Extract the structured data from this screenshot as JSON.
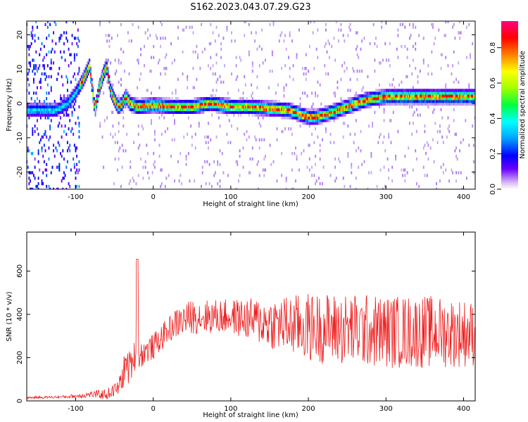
{
  "title": "S162.2023.043.07.29.G23",
  "colors": {
    "snr_line": "#ee1c1c",
    "frame": "#000000"
  },
  "chart_data": [
    {
      "type": "heatmap",
      "xlabel": "Height of straight line (km)",
      "ylabel": "Frequency (Hz)",
      "xlim": [
        -163,
        415
      ],
      "ylim": [
        -25,
        24
      ],
      "x_ticks": [
        "-100",
        "0",
        "100",
        "200",
        "300",
        "400"
      ],
      "y_ticks": [
        "-20",
        "-10",
        "0",
        "10",
        "20"
      ],
      "ridge": {
        "x": [
          -125,
          -110,
          -100,
          -90,
          -82,
          -75,
          -70,
          -65,
          -60,
          -55,
          -50,
          -45,
          -40,
          -35,
          -30,
          -20,
          0,
          25,
          50,
          75,
          100,
          125,
          150,
          175,
          200,
          210,
          225,
          250,
          275,
          300,
          325,
          350,
          375,
          400,
          415
        ],
        "y": [
          -2,
          0,
          3,
          7,
          11,
          -2,
          4,
          8,
          11,
          4,
          1,
          -1,
          0,
          2,
          0,
          -1,
          -0.5,
          -1,
          -1,
          0,
          -1,
          -1,
          -1.5,
          -2,
          -4,
          -4,
          -3,
          -1,
          1,
          2,
          2,
          2,
          2,
          2,
          2
        ]
      },
      "colorbar": {
        "label": "Normalized spectral amplitude",
        "ticks": [
          "0.0",
          "0.2",
          "0.4",
          "0.6",
          "0.8"
        ]
      }
    },
    {
      "type": "line",
      "xlabel": "Height of straight line (km)",
      "ylabel": "SNR (10 * v/v)",
      "xlim": [
        -163,
        415
      ],
      "ylim": [
        0,
        780
      ],
      "x_ticks": [
        "-100",
        "0",
        "100",
        "200",
        "300",
        "400"
      ],
      "y_ticks": [
        "0",
        "200",
        "400",
        "600"
      ],
      "envelope": {
        "x": [
          -163,
          -120,
          -100,
          -80,
          -60,
          -45,
          -40,
          -35,
          -30,
          -25,
          -20,
          -10,
          0,
          10,
          20,
          30,
          50,
          100,
          150,
          200,
          250,
          300,
          350,
          400,
          415
        ],
        "mean": [
          15,
          18,
          22,
          30,
          30,
          60,
          110,
          170,
          150,
          210,
          200,
          230,
          250,
          290,
          330,
          360,
          390,
          390,
          360,
          340,
          330,
          320,
          320,
          315,
          310
        ],
        "spread": [
          5,
          6,
          10,
          15,
          25,
          35,
          60,
          90,
          80,
          70,
          60,
          60,
          60,
          60,
          60,
          70,
          80,
          80,
          120,
          160,
          170,
          170,
          170,
          160,
          150
        ]
      }
    }
  ]
}
